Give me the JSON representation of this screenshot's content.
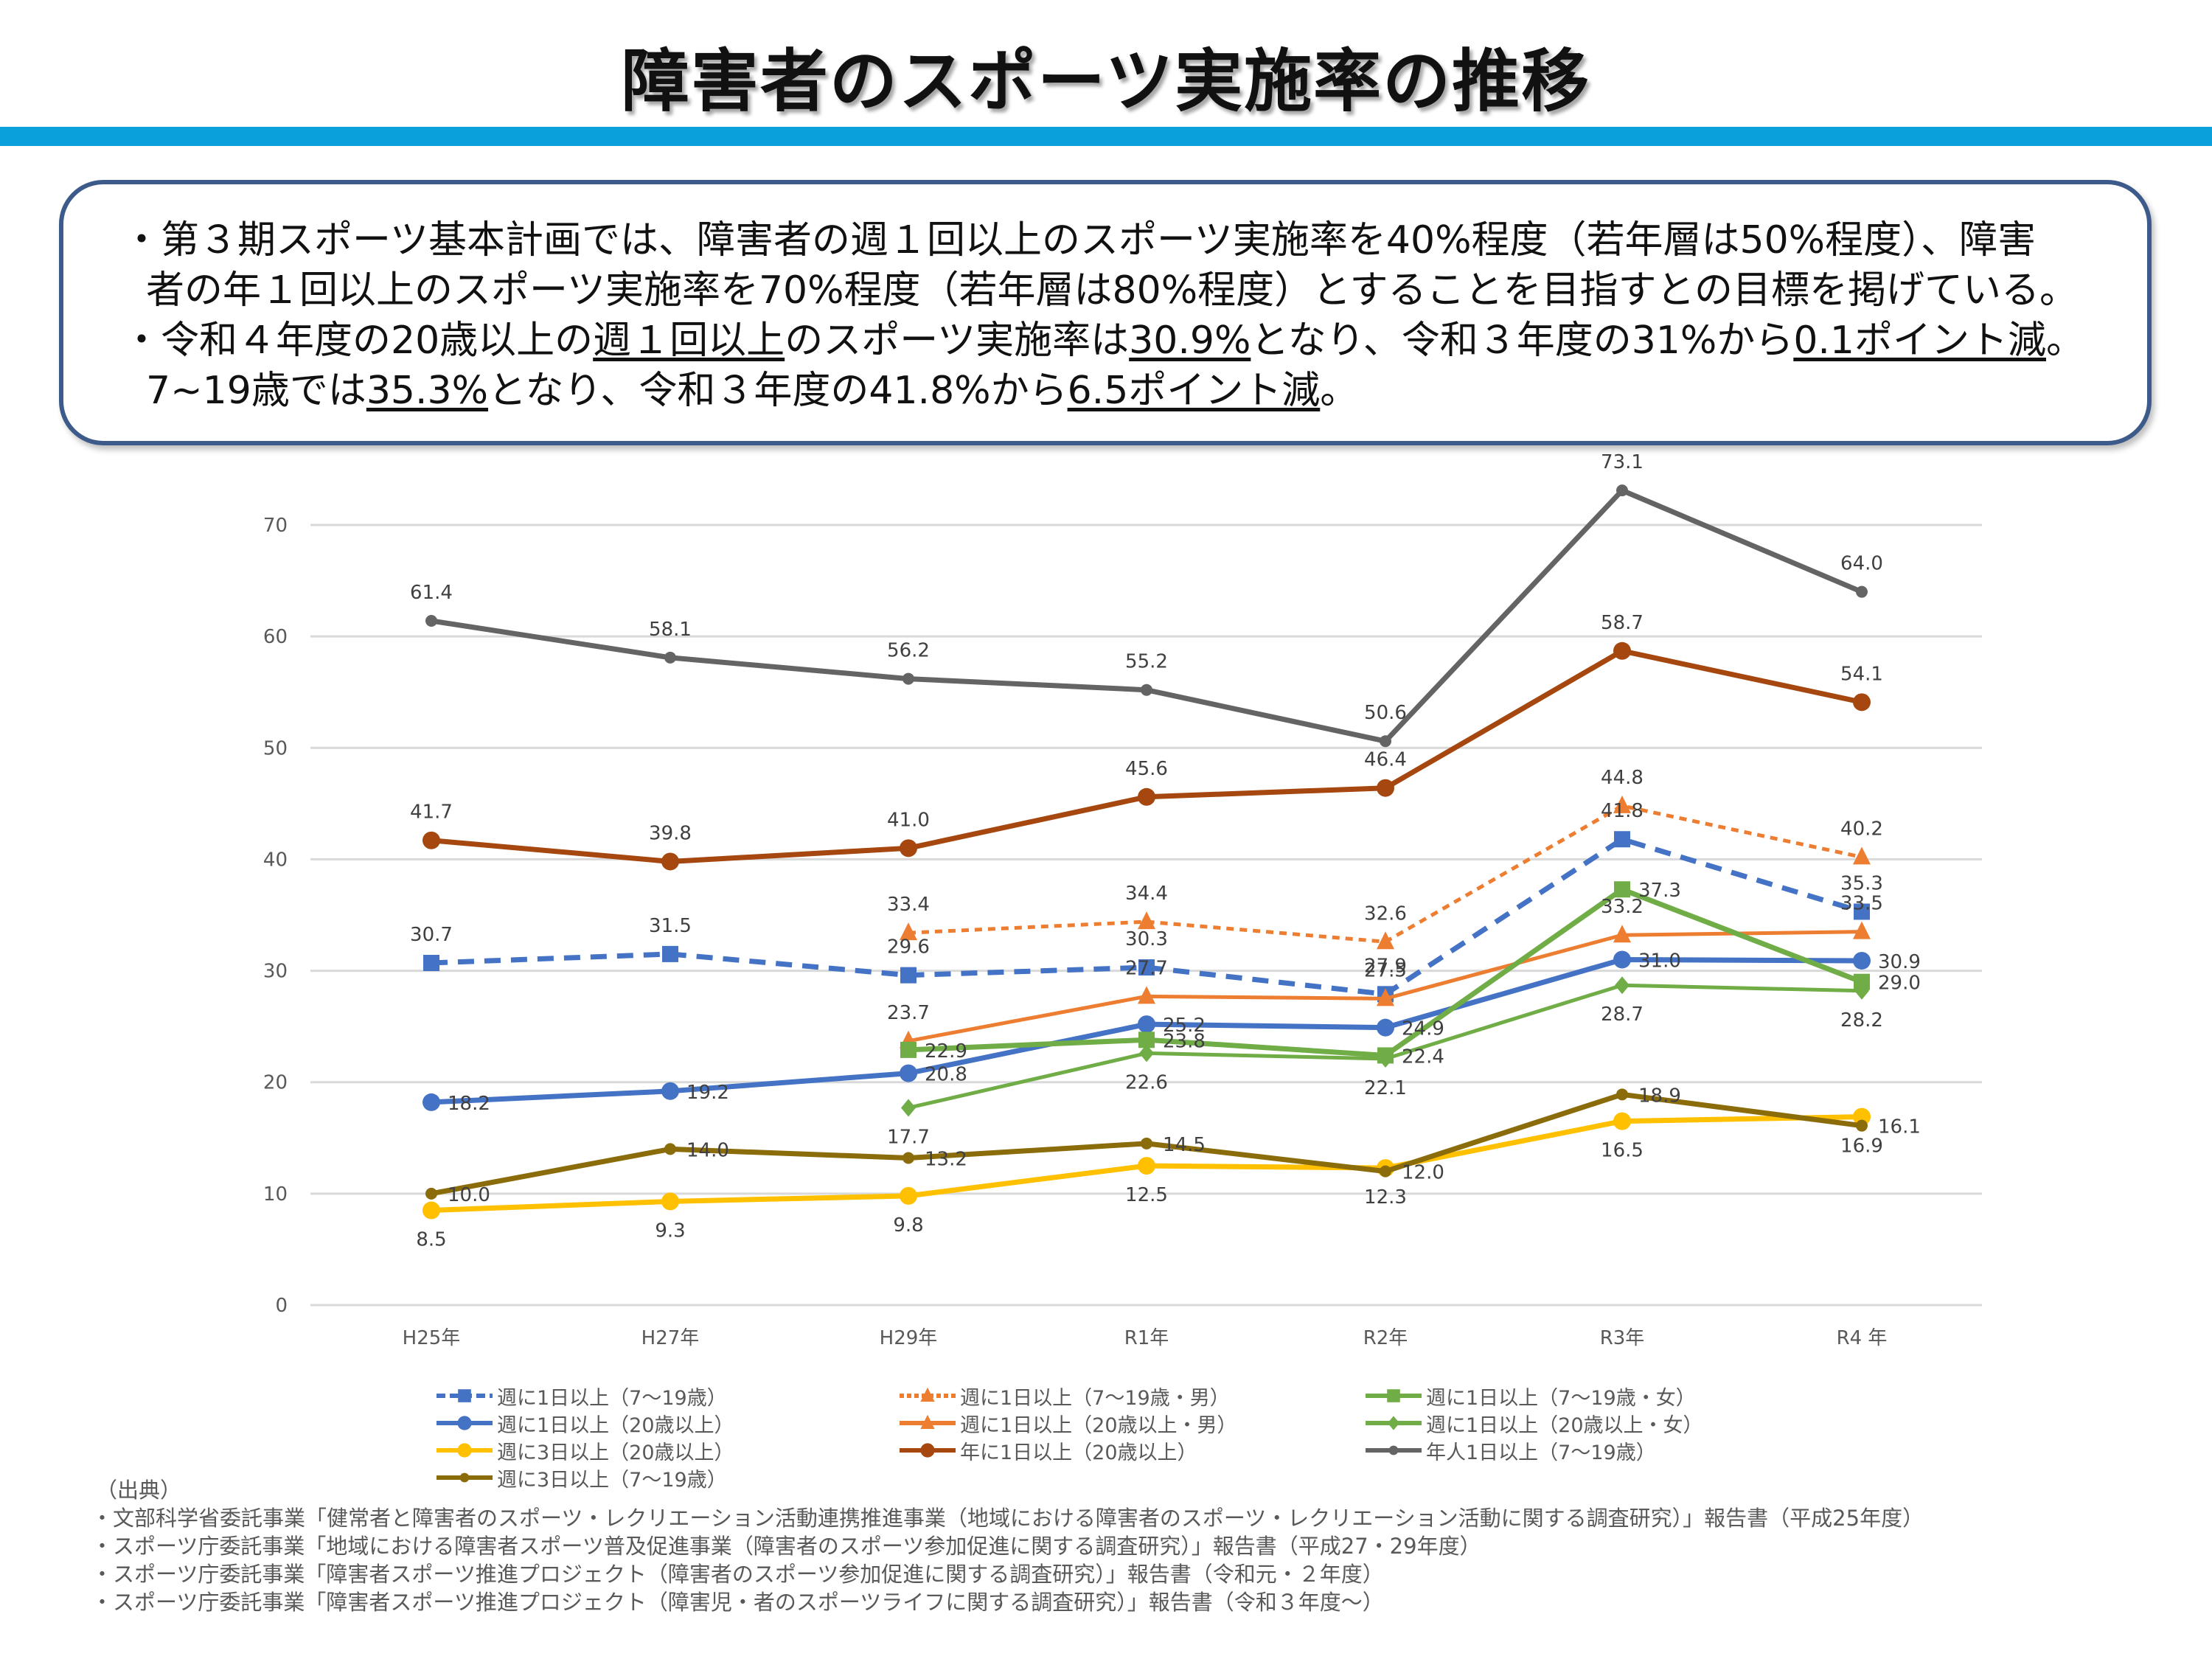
{
  "header": {
    "title": "障害者のスポーツ実施率の推移"
  },
  "summary": {
    "line1": "・第３期スポーツ基本計画では、障害者の週１回以上のスポーツ実施率を40%程度（若年層は50%程度）、障害",
    "line2": "者の年１回以上のスポーツ実施率を70%程度（若年層は80%程度）とすることを目指すとの目標を掲げている。",
    "line3_a": "・令和４年度の20歳以上の",
    "line3_u1": "週１回以上",
    "line3_b": "のスポーツ実施率は",
    "line3_u2": "30.9%",
    "line3_c": "となり、令和３年度の31%から",
    "line3_u3": "0.1ポイント減",
    "line3_d": "。",
    "line4_a": "7~19歳では",
    "line4_u1": "35.3%",
    "line4_b": "となり、令和３年度の41.8%から",
    "line4_u2": "6.5ポイント減",
    "line4_c": "。"
  },
  "chart_data": {
    "type": "line",
    "title": "",
    "xlabel": "",
    "ylabel": "",
    "categories": [
      "H25年",
      "H27年",
      "H29年",
      "R1年",
      "R2年",
      "R3年",
      "R4 年"
    ],
    "ylim": [
      0,
      70
    ],
    "yticks": [
      0,
      10,
      20,
      30,
      40,
      50,
      60,
      70
    ],
    "grid": true,
    "legend_position": "bottom",
    "series": [
      {
        "name": "週に1日以上（7〜19歳）",
        "color": "#4472c4",
        "dash": "long",
        "marker": "square",
        "values": [
          30.7,
          31.5,
          29.6,
          30.3,
          27.9,
          41.8,
          35.3
        ],
        "label_pos": "above"
      },
      {
        "name": "週に1日以上（20歳以上）",
        "color": "#4472c4",
        "dash": "solid",
        "marker": "circle",
        "values": [
          18.2,
          19.2,
          20.8,
          25.2,
          24.9,
          31.0,
          30.9
        ],
        "label_pos": "right"
      },
      {
        "name": "週に3日以上（20歳以上）",
        "color": "#ffc000",
        "dash": "solid",
        "marker": "circle",
        "values": [
          8.5,
          9.3,
          9.8,
          12.5,
          12.3,
          16.5,
          16.9
        ],
        "label_pos": "below"
      },
      {
        "name": "週に3日以上（7〜19歳）",
        "color": "#8b6c0a",
        "dash": "solid",
        "marker": "small-circle",
        "values": [
          10.0,
          14.0,
          13.2,
          14.5,
          12.0,
          18.9,
          16.1
        ],
        "label_pos": "right"
      },
      {
        "name": "週に1日以上（7〜19歳・男）",
        "color": "#ed7d31",
        "dash": "short",
        "marker": "triangle",
        "values": [
          null,
          null,
          33.4,
          34.4,
          32.6,
          44.8,
          40.2
        ],
        "label_pos": "above"
      },
      {
        "name": "週に1日以上（20歳以上・男）",
        "color": "#ed7d31",
        "dash": "solid-thin",
        "marker": "triangle",
        "values": [
          null,
          null,
          23.7,
          27.7,
          27.5,
          33.2,
          33.5
        ],
        "label_pos": "above"
      },
      {
        "name": "年に1日以上（20歳以上）",
        "color": "#a5470f",
        "dash": "solid",
        "marker": "circle",
        "values": [
          41.7,
          39.8,
          41.0,
          45.6,
          46.4,
          58.7,
          54.1
        ],
        "label_pos": "above"
      },
      {
        "name": "週に1日以上（7〜19歳・女）",
        "color": "#70ad47",
        "dash": "solid",
        "marker": "square",
        "values": [
          null,
          null,
          22.9,
          23.8,
          22.4,
          37.3,
          29.0
        ],
        "label_pos": "right"
      },
      {
        "name": "週に1日以上（20歳以上・女）",
        "color": "#70ad47",
        "dash": "solid-thin",
        "marker": "diamond",
        "values": [
          null,
          null,
          17.7,
          22.6,
          22.1,
          28.7,
          28.2
        ],
        "label_pos": "below"
      },
      {
        "name": "年人1日以上（7〜19歳）",
        "color": "#646464",
        "dash": "solid",
        "marker": "small-circle",
        "values": [
          61.4,
          58.1,
          56.2,
          55.2,
          50.6,
          73.1,
          64.0
        ],
        "label_pos": "above"
      }
    ]
  },
  "sources": {
    "heading": "（出典）",
    "items": [
      "・文部科学省委託事業「健常者と障害者のスポーツ・レクリエーション活動連携推進事業（地域における障害者のスポーツ・レクリエーション活動に関する調査研究）」報告書（平成25年度）",
      "・スポーツ庁委託事業「地域における障害者スポーツ普及促進事業（障害者のスポーツ参加促進に関する調査研究）」報告書（平成27・29年度）",
      "・スポーツ庁委託事業「障害者スポーツ推進プロジェクト（障害者のスポーツ参加促進に関する調査研究）」報告書（令和元・２年度）",
      "・スポーツ庁委託事業「障害者スポーツ推進プロジェクト（障害児・者のスポーツライフに関する調査研究）」報告書（令和３年度〜）"
    ]
  }
}
